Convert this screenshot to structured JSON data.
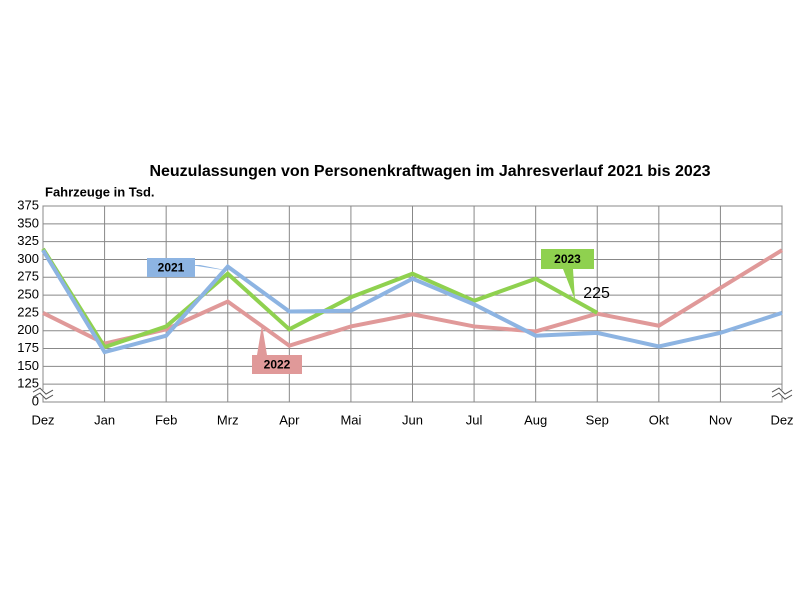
{
  "chart_data": {
    "type": "line",
    "title": "Neuzulassungen von Personenkraftwagen im Jahresverlauf 2021 bis 2023",
    "y_axis_label": "Fahrzeuge in Tsd.",
    "categories": [
      "Dez",
      "Jan",
      "Feb",
      "Mrz",
      "Apr",
      "Mai",
      "Jun",
      "Jul",
      "Aug",
      "Sep",
      "Okt",
      "Nov",
      "Dez"
    ],
    "series": [
      {
        "name": "2021",
        "color": "#8db4e2",
        "values": [
          313,
          170,
          193,
          290,
          227,
          228,
          273,
          237,
          193,
          197,
          178,
          197,
          225
        ]
      },
      {
        "name": "2022",
        "color": "#e09999",
        "values": [
          225,
          182,
          202,
          241,
          179,
          206,
          223,
          206,
          199,
          224,
          207,
          260,
          313
        ]
      },
      {
        "name": "2023",
        "color": "#8fd14f",
        "values": [
          315,
          177,
          206,
          280,
          202,
          247,
          280,
          242,
          273,
          225,
          null,
          null,
          null
        ]
      }
    ],
    "ylim": [
      0,
      375
    ],
    "yticks": [
      0,
      125,
      150,
      175,
      200,
      225,
      250,
      275,
      300,
      325,
      350,
      375
    ],
    "axis_break": true,
    "grid": true
  }
}
